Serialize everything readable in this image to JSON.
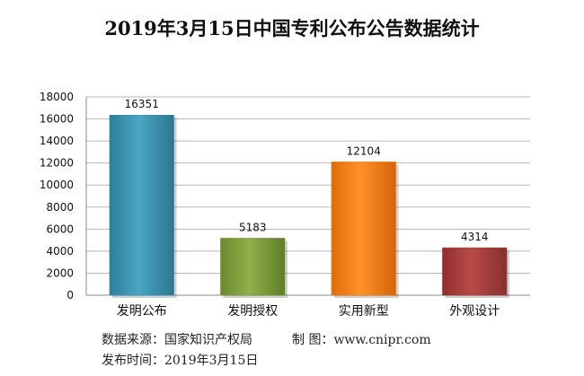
{
  "chart_data": {
    "type": "bar",
    "title": "2019年3月15日中国专利公布公告数据统计",
    "categories": [
      "发明公布",
      "发明授权",
      "实用新型",
      "外观设计"
    ],
    "values": [
      16351,
      5183,
      12104,
      4314
    ],
    "ylim": [
      0,
      18000
    ],
    "yticks": [
      0,
      2000,
      4000,
      6000,
      8000,
      10000,
      12000,
      14000,
      16000,
      18000
    ],
    "grid": true,
    "legend": "none",
    "colors": [
      "#3a91ad",
      "#7a9b3a",
      "#f07a12",
      "#a23a38"
    ]
  },
  "footer": {
    "source": "数据来源：国家知识产权局",
    "credit": "制  图：www.cnipr.com",
    "date": "发布时间：2019年3月15日"
  }
}
